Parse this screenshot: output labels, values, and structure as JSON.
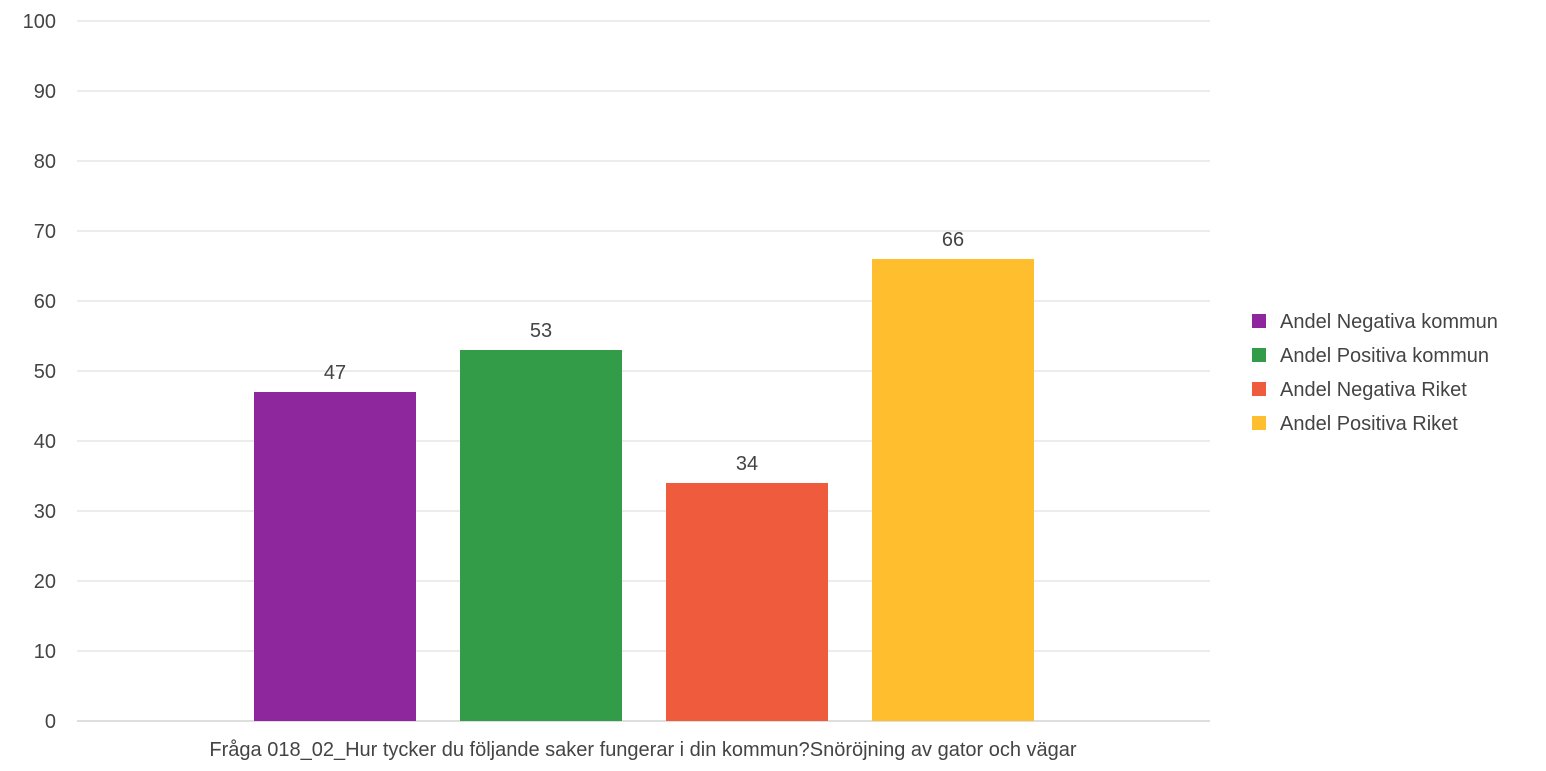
{
  "chart_data": {
    "type": "bar",
    "title": "",
    "xlabel": "",
    "ylabel": "",
    "categories": [
      "Fråga 018_02_Hur tycker du följande saker fungerar i din kommun?Snöröjning av gator och vägar"
    ],
    "ylim": [
      0,
      100
    ],
    "yticks": [
      "0",
      "10",
      "20",
      "30",
      "40",
      "50",
      "60",
      "70",
      "80",
      "90",
      "100"
    ],
    "grid": true,
    "legend_position": "right",
    "series": [
      {
        "name": "Andel Negativa kommun",
        "values": [
          47
        ],
        "color": "#8E279E",
        "label": "47"
      },
      {
        "name": "Andel Positiva kommun",
        "values": [
          53
        ],
        "color": "#339C48",
        "label": "53"
      },
      {
        "name": "Andel Negativa Riket",
        "values": [
          34
        ],
        "color": "#EE5B3D",
        "label": "34"
      },
      {
        "name": "Andel Positiva Riket",
        "values": [
          66
        ],
        "color": "#FEBE2E",
        "label": "66"
      }
    ]
  }
}
